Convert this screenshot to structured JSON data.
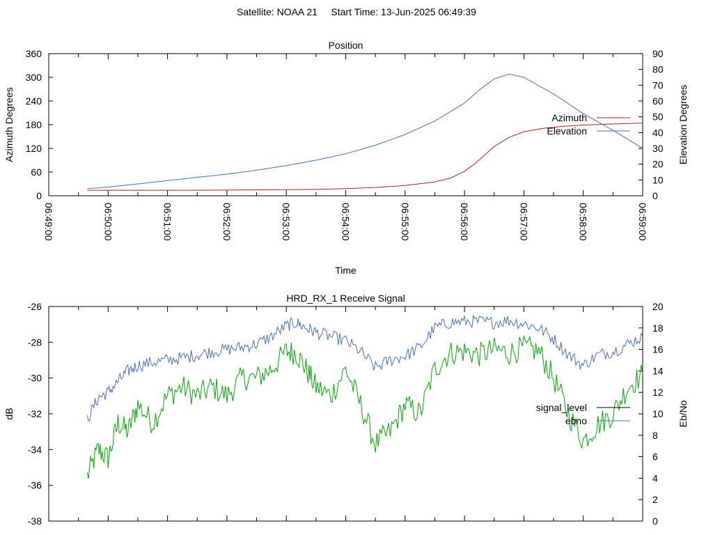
{
  "header": {
    "text": "Satellite: NOAA 21     Start Time: 13-Jun-2025 06:49:39"
  },
  "chart_data": [
    {
      "type": "line",
      "title": "Position",
      "xlabel": "Time",
      "ylabel": "Azimuth Degrees",
      "y2label": "Elevation Degrees",
      "grid": false,
      "legend_placement": "right",
      "xlim": [
        "06:49:00",
        "06:59:00"
      ],
      "ylim": [
        0,
        360
      ],
      "y2lim": [
        0,
        90
      ],
      "x_tick_labels": [
        "06:49:00",
        "06:50:00",
        "06:51:00",
        "06:52:00",
        "06:53:00",
        "06:54:00",
        "06:55:00",
        "06:56:00",
        "06:57:00",
        "06:58:00",
        "06:59:00"
      ],
      "y_ticks": [
        0,
        60,
        120,
        180,
        240,
        300,
        360
      ],
      "y2_ticks": [
        0,
        10,
        20,
        30,
        40,
        50,
        60,
        70,
        80,
        90
      ],
      "series": [
        {
          "name": "Azimuth",
          "axis": "left",
          "color": "#b22222",
          "x": [
            "06:49:39",
            "06:50:30",
            "06:51:30",
            "06:52:30",
            "06:53:30",
            "06:54:00",
            "06:54:30",
            "06:55:00",
            "06:55:30",
            "06:55:45",
            "06:56:00",
            "06:56:10",
            "06:56:20",
            "06:56:30",
            "06:56:45",
            "06:57:00",
            "06:57:20",
            "06:57:40",
            "06:58:00",
            "06:58:30",
            "06:59:00"
          ],
          "values": [
            14,
            14,
            14,
            15,
            16,
            18,
            21,
            26,
            35,
            44,
            62,
            80,
            102,
            125,
            148,
            162,
            171,
            176,
            179,
            182,
            184
          ]
        },
        {
          "name": "Elevation",
          "axis": "right",
          "color": "#4472c4",
          "x": [
            "06:49:39",
            "06:50:00",
            "06:50:30",
            "06:51:00",
            "06:51:30",
            "06:52:00",
            "06:52:30",
            "06:53:00",
            "06:53:30",
            "06:54:00",
            "06:54:30",
            "06:55:00",
            "06:55:30",
            "06:56:00",
            "06:56:15",
            "06:56:30",
            "06:56:45",
            "06:57:00",
            "06:57:30",
            "06:58:00",
            "06:58:30",
            "06:59:00"
          ],
          "values": [
            4.5,
            5.5,
            7.5,
            9.6,
            11.7,
            13.7,
            16.2,
            19.1,
            22.5,
            26.6,
            32,
            38.8,
            47.3,
            58.7,
            67,
            74,
            77,
            75,
            64.5,
            52,
            41.5,
            30
          ]
        }
      ]
    },
    {
      "type": "line",
      "title": "HRD_RX_1 Receive Signal",
      "xlabel": "",
      "ylabel": "dB",
      "y2label": "Eb/No",
      "grid": false,
      "legend_placement": "right",
      "xlim": [
        "06:49:00",
        "06:59:00"
      ],
      "ylim": [
        -38,
        -26
      ],
      "y2lim": [
        0,
        20
      ],
      "y_ticks": [
        -38,
        -36,
        -34,
        -32,
        -30,
        -28,
        -26
      ],
      "y2_ticks": [
        0,
        2,
        4,
        6,
        8,
        10,
        12,
        14,
        16,
        18,
        20
      ],
      "series": [
        {
          "name": "signal_level",
          "axis": "left",
          "color": "#00aa00",
          "x": [
            "06:49:39",
            "06:49:50",
            "06:50:00",
            "06:50:10",
            "06:50:20",
            "06:50:30",
            "06:50:45",
            "06:51:00",
            "06:51:15",
            "06:51:30",
            "06:51:45",
            "06:52:00",
            "06:52:15",
            "06:52:30",
            "06:52:45",
            "06:53:00",
            "06:53:10",
            "06:53:20",
            "06:53:30",
            "06:53:45",
            "06:54:00",
            "06:54:15",
            "06:54:30",
            "06:54:45",
            "06:55:00",
            "06:55:15",
            "06:55:30",
            "06:55:45",
            "06:56:00",
            "06:56:15",
            "06:56:30",
            "06:56:45",
            "06:57:00",
            "06:57:15",
            "06:57:30",
            "06:57:45",
            "06:58:00",
            "06:58:15",
            "06:58:30",
            "06:58:45",
            "06:59:00"
          ],
          "values": [
            -35.5,
            -34,
            -34.5,
            -32.5,
            -33,
            -31.5,
            -32.5,
            -31,
            -30.5,
            -31,
            -30.5,
            -31,
            -30,
            -30,
            -29.5,
            -28.5,
            -28.6,
            -29.5,
            -30.5,
            -31,
            -29.5,
            -31.5,
            -33.7,
            -33,
            -31.5,
            -32,
            -29.5,
            -28.6,
            -28.5,
            -28.7,
            -28.4,
            -28.6,
            -28.3,
            -28.5,
            -30,
            -32,
            -33.5,
            -32.6,
            -32,
            -30.5,
            -29.8
          ]
        },
        {
          "name": "ebno",
          "axis": "right",
          "color": "#4472c4",
          "x": [
            "06:49:39",
            "06:49:50",
            "06:50:00",
            "06:50:10",
            "06:50:20",
            "06:50:30",
            "06:50:45",
            "06:51:00",
            "06:51:15",
            "06:51:30",
            "06:51:45",
            "06:52:00",
            "06:52:15",
            "06:52:30",
            "06:52:45",
            "06:53:00",
            "06:53:10",
            "06:53:20",
            "06:53:30",
            "06:53:45",
            "06:54:00",
            "06:54:15",
            "06:54:30",
            "06:54:45",
            "06:55:00",
            "06:55:15",
            "06:55:30",
            "06:55:45",
            "06:56:00",
            "06:56:15",
            "06:56:30",
            "06:56:45",
            "06:57:00",
            "06:57:15",
            "06:57:30",
            "06:57:45",
            "06:58:00",
            "06:58:15",
            "06:58:30",
            "06:58:45",
            "06:59:00"
          ],
          "values": [
            9.5,
            11.5,
            12,
            13,
            14,
            14.5,
            14.8,
            15,
            15.2,
            15.5,
            15.8,
            16,
            16.2,
            16.5,
            17.2,
            18.2,
            18.5,
            18,
            17.6,
            17.2,
            16.8,
            15.8,
            14.3,
            15,
            15.4,
            16.2,
            18,
            18.5,
            18.6,
            18.6,
            18.5,
            18.7,
            18.4,
            18,
            17,
            15.5,
            14.5,
            15.5,
            15.8,
            16.5,
            17.2
          ]
        }
      ]
    }
  ]
}
